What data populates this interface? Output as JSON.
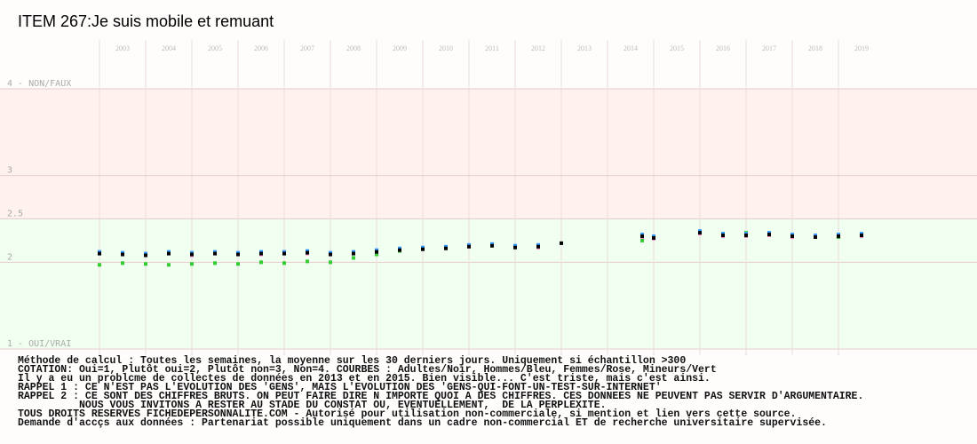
{
  "chart_data": {
    "type": "scatter",
    "title": "ITEM 267:Je suis mobile et remuant",
    "x": [
      2003,
      2003.5,
      2004,
      2004.5,
      2005,
      2005.5,
      2006,
      2006.5,
      2007,
      2007.5,
      2008,
      2008.5,
      2009,
      2009.5,
      2010,
      2010.5,
      2011,
      2011.5,
      2012,
      2012.5,
      2013,
      2014.75,
      2015,
      2016,
      2016.5,
      2017,
      2017.5,
      2018,
      2018.5,
      2019,
      2019.5
    ],
    "series": [
      {
        "color": "#33cc33",
        "values": [
          1.97,
          1.99,
          1.98,
          1.97,
          1.98,
          1.99,
          1.98,
          2.0,
          1.99,
          2.01,
          2.0,
          2.05,
          2.09,
          2.13,
          2.16,
          2.17,
          2.19,
          2.2,
          2.19,
          2.17,
          null,
          2.25,
          2.27,
          2.35,
          2.33,
          2.34,
          2.33,
          2.31,
          2.3,
          2.29,
          2.3
        ]
      },
      {
        "color": "#ff88cc",
        "values": [
          2.1,
          2.09,
          2.09,
          2.1,
          2.08,
          2.1,
          2.1,
          2.09,
          2.1,
          2.1,
          2.09,
          2.11,
          2.13,
          2.14,
          2.16,
          2.17,
          2.18,
          2.2,
          2.18,
          2.17,
          null,
          2.29,
          2.27,
          2.33,
          2.3,
          2.3,
          2.31,
          2.29,
          2.29,
          2.31,
          2.3
        ]
      },
      {
        "color": "#3399ff",
        "values": [
          2.12,
          2.11,
          2.1,
          2.12,
          2.11,
          2.12,
          2.11,
          2.12,
          2.12,
          2.13,
          2.11,
          2.12,
          2.14,
          2.16,
          2.17,
          2.18,
          2.2,
          2.21,
          2.19,
          2.2,
          null,
          2.32,
          2.3,
          2.36,
          2.33,
          2.33,
          2.34,
          2.32,
          2.31,
          2.32,
          2.33
        ]
      },
      {
        "color": "#000000",
        "values": [
          2.1,
          2.09,
          2.08,
          2.1,
          2.09,
          2.1,
          2.09,
          2.1,
          2.1,
          2.11,
          2.09,
          2.1,
          2.12,
          2.14,
          2.15,
          2.16,
          2.18,
          2.19,
          2.17,
          2.18,
          2.22,
          2.3,
          2.28,
          2.34,
          2.31,
          2.31,
          2.32,
          2.3,
          2.29,
          2.3,
          2.31
        ]
      }
    ],
    "xlim": [
      2003,
      2022
    ],
    "xticks": [
      2003,
      2004,
      2005,
      2006,
      2007,
      2008,
      2009,
      2010,
      2011,
      2012,
      2013,
      2014,
      2015,
      2016,
      2017,
      2018,
      2019
    ],
    "ylim": [
      1,
      4
    ],
    "yticks": [
      {
        "value": 4,
        "label": "4 - NON/FAUX"
      },
      3,
      2.5,
      2,
      {
        "value": 1,
        "label": "1 - OUI/VRAI"
      }
    ],
    "bands": [
      {
        "from": 2.5,
        "to": 4,
        "color": "#fff2ee"
      },
      {
        "from": 1,
        "to": 2.5,
        "color": "#f0fff0"
      }
    ],
    "grid": true,
    "notes": [
      "Méthode de calcul : Toutes les semaines, la moyenne sur les 30 derniers jours. Uniquement si échantillon >300",
      "COTATION: Oui=1, Plutôt oui=2, Plutôt non=3, Non=4. COURBES : Adultes/Noir, Hommes/Bleu, Femmes/Rose, Mineurs/Vert",
      "Il y a eu un problcme de collectes de données en 2013 et en 2015. Bien visible... C'est triste, mais c'est ainsi.",
      "RAPPEL 1 : CE N'EST PAS L'EVOLUTION DES 'GENS', MAIS L'EVOLUTION DES 'GENS-QUI-FONT-UN-TEST-SUR-INTERNET'",
      "RAPPEL 2 : CE SONT DES CHIFFRES BRUTS. ON PEUT FAIRE DIRE N IMPORTE QUOI A DES CHIFFRES. CES DONNEES NE PEUVENT PAS SERVIR D'ARGUMENTAIRE.",
      "          NOUS VOUS INVITONS A RESTER AU STADE DU CONSTAT OU, EVENTUELLEMENT,  DE LA PERPLEXITE.",
      "TOUS DROITS RESERVES FICHEDEPERSONNALITE.COM - Autorisé pour utilisation non-commerciale, si mention et lien vers cette source.",
      "Demande d'accçs aux données : Partenariat possible uniquement dans un cadre non-commercial ET de recherche universitaire supervisée."
    ]
  }
}
